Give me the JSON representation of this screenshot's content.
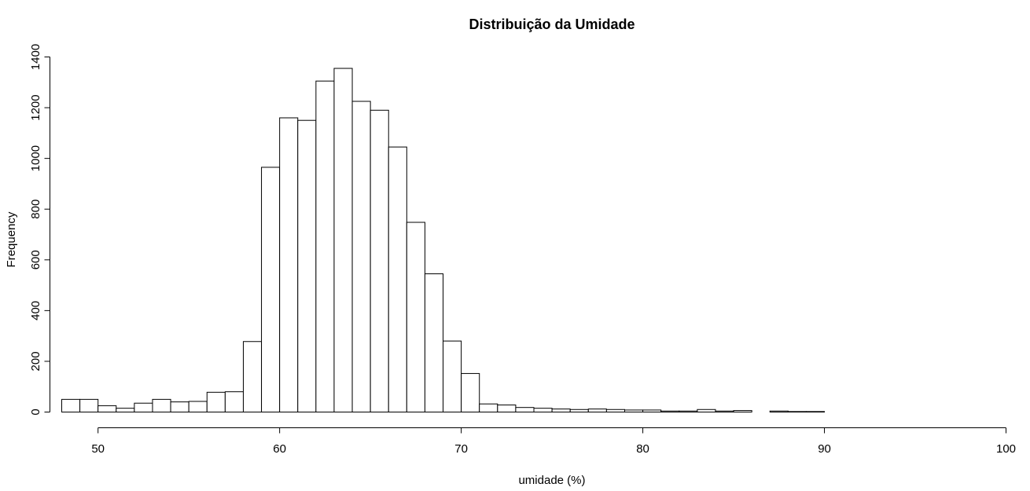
{
  "chart_data": {
    "type": "bar",
    "title": "Distribuição da Umidade",
    "xlabel": "umidade (%)",
    "ylabel": "Frequency",
    "xlim": [
      48,
      100
    ],
    "ylim": [
      0,
      1400
    ],
    "x_ticks": [
      50,
      60,
      70,
      80,
      90,
      100
    ],
    "y_ticks": [
      0,
      200,
      400,
      600,
      800,
      1000,
      1200,
      1400
    ],
    "bin_width": 1,
    "bins_start": [
      48,
      49,
      50,
      51,
      52,
      53,
      54,
      55,
      56,
      57,
      58,
      59,
      60,
      61,
      62,
      63,
      64,
      65,
      66,
      67,
      68,
      69,
      70,
      71,
      72,
      73,
      74,
      75,
      76,
      77,
      78,
      79,
      80,
      81,
      82,
      83,
      84,
      85,
      86,
      87,
      88,
      89,
      90
    ],
    "values": [
      50,
      50,
      25,
      15,
      35,
      50,
      40,
      42,
      78,
      80,
      278,
      965,
      1160,
      1150,
      1305,
      1355,
      1225,
      1190,
      1045,
      748,
      545,
      280,
      152,
      32,
      28,
      18,
      15,
      12,
      10,
      12,
      10,
      8,
      8,
      4,
      4,
      10,
      4,
      6,
      0,
      4,
      2,
      2,
      0
    ],
    "grid": false,
    "legend": "none"
  }
}
